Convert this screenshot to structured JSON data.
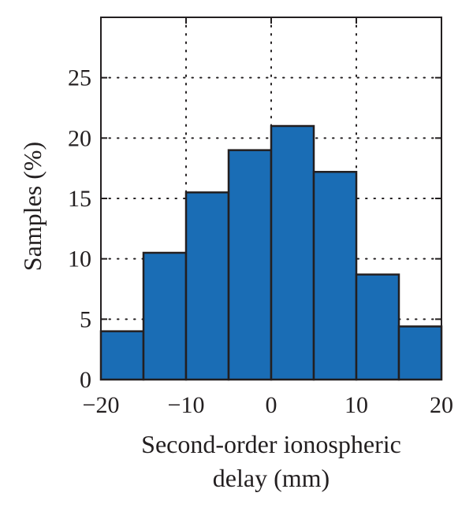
{
  "chart_data": {
    "type": "bar",
    "bins": [
      {
        "x0": -20,
        "x1": -15,
        "value": 4
      },
      {
        "x0": -15,
        "x1": -10,
        "value": 10.5
      },
      {
        "x0": -10,
        "x1": -5,
        "value": 15.5
      },
      {
        "x0": -5,
        "x1": 0,
        "value": 19
      },
      {
        "x0": 0,
        "x1": 5,
        "value": 21
      },
      {
        "x0": 5,
        "x1": 10,
        "value": 17.2
      },
      {
        "x0": 10,
        "x1": 15,
        "value": 8.7
      },
      {
        "x0": 15,
        "x1": 20,
        "value": 4.4
      }
    ],
    "xlabel_lines": [
      "Second-order ionospheric",
      "delay (mm)"
    ],
    "ylabel": "Samples (%)",
    "xlim": [
      -20,
      20
    ],
    "ylim": [
      0,
      30
    ],
    "xticks": [
      -20,
      -10,
      0,
      10,
      20
    ],
    "xtick_labels": [
      "−20",
      "−10",
      "0",
      "10",
      "20"
    ],
    "yticks": [
      0,
      5,
      10,
      15,
      20,
      25
    ],
    "ytick_labels": [
      "0",
      "5",
      "10",
      "15",
      "20",
      "25"
    ],
    "grid": true,
    "bar_color": "#1a6db5",
    "edge_color": "#231f20"
  }
}
